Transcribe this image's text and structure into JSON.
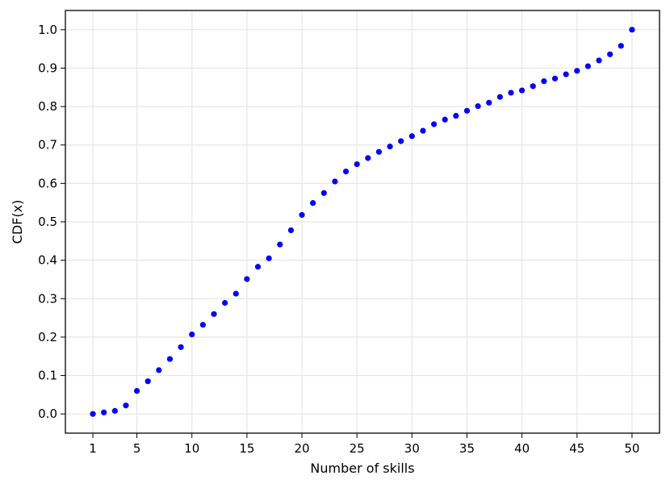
{
  "chart_data": {
    "type": "scatter",
    "xlabel": "Number of skills",
    "ylabel": "CDF(x)",
    "xlim": [
      -1.5,
      52.5
    ],
    "ylim": [
      -0.05,
      1.05
    ],
    "x_ticks": [
      1,
      5,
      10,
      15,
      20,
      25,
      30,
      35,
      40,
      45,
      50
    ],
    "y_ticks": [
      0.0,
      0.1,
      0.2,
      0.3,
      0.4,
      0.5,
      0.6,
      0.7,
      0.8,
      0.9,
      1.0
    ],
    "y_tick_labels": [
      "0.0",
      "0.1",
      "0.2",
      "0.3",
      "0.4",
      "0.5",
      "0.6",
      "0.7",
      "0.8",
      "0.9",
      "1.0"
    ],
    "grid": true,
    "marker_color": "#0000ff",
    "series": [
      {
        "x": [
          1,
          2,
          3,
          4,
          5,
          6,
          7,
          8,
          9,
          10,
          11,
          12,
          13,
          14,
          15,
          16,
          17,
          18,
          19,
          20,
          21,
          22,
          23,
          24,
          25,
          26,
          27,
          28,
          29,
          30,
          31,
          32,
          33,
          34,
          35,
          36,
          37,
          38,
          39,
          40,
          41,
          42,
          43,
          44,
          45,
          46,
          47,
          48,
          49,
          50
        ],
        "y": [
          0.0,
          0.004,
          0.008,
          0.022,
          0.06,
          0.085,
          0.114,
          0.143,
          0.174,
          0.207,
          0.232,
          0.26,
          0.289,
          0.313,
          0.351,
          0.383,
          0.405,
          0.441,
          0.478,
          0.518,
          0.549,
          0.575,
          0.605,
          0.631,
          0.65,
          0.666,
          0.682,
          0.696,
          0.71,
          0.723,
          0.737,
          0.754,
          0.766,
          0.776,
          0.789,
          0.801,
          0.81,
          0.825,
          0.836,
          0.842,
          0.853,
          0.866,
          0.873,
          0.884,
          0.893,
          0.905,
          0.92,
          0.936,
          0.958,
          1.0
        ]
      }
    ]
  }
}
